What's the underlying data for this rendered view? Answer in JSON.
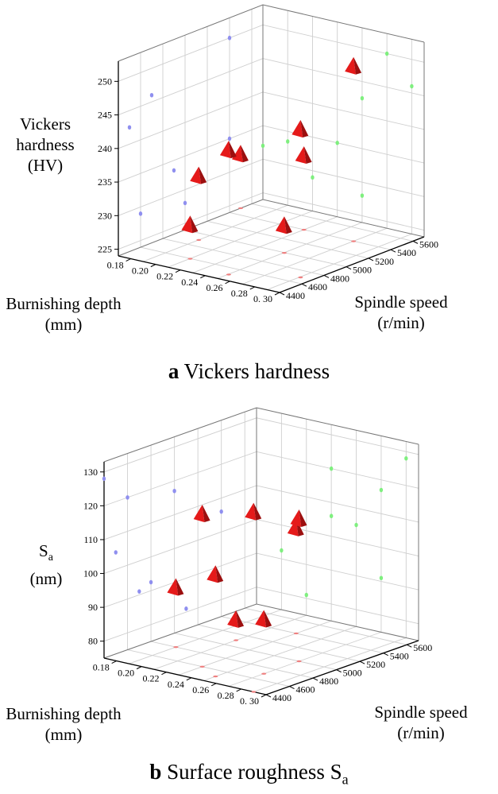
{
  "charts": [
    {
      "type": "scatter3d",
      "panel_letter": "a",
      "caption": "Vickers hardness",
      "y_title_lines": [
        "Vickers",
        "hardness",
        "(HV)"
      ],
      "x_title_lines": [
        "Burnishing depth",
        "(mm)"
      ],
      "z_title_lines": [
        "Spindle speed",
        "(r/min)"
      ],
      "y_ticks": [
        "225",
        "230",
        "235",
        "240",
        "245",
        "250"
      ],
      "x_ticks": [
        "0.18",
        "0.20",
        "0.22",
        "0.24",
        "0.26",
        "0.28",
        "0. 30"
      ],
      "z_ticks": [
        "4400",
        "4600",
        "4800",
        "5000",
        "5200",
        "5400",
        "5600"
      ],
      "ylim": [
        224,
        253
      ],
      "xlim": [
        0.17,
        0.3
      ],
      "zlim": [
        4400,
        5700
      ],
      "points": [
        {
          "depth": 0.2,
          "speed": 5000,
          "value": 235.0
        },
        {
          "depth": 0.25,
          "speed": 4600,
          "value": 233.5
        },
        {
          "depth": 0.27,
          "speed": 5600,
          "value": 246.0
        },
        {
          "depth": 0.2,
          "speed": 5400,
          "value": 250.0
        },
        {
          "depth": 0.28,
          "speed": 4800,
          "value": 229.0
        },
        {
          "depth": 0.19,
          "speed": 4400,
          "value": 232.0
        },
        {
          "depth": 0.29,
          "speed": 5200,
          "value": 242.5
        },
        {
          "depth": 0.24,
          "speed": 5200,
          "value": 228.0
        }
      ],
      "colors": {
        "point": "#e02020",
        "side_yz": "#8f8fef",
        "side_xy": "#7fef7f",
        "bottom": "#ef7f7f"
      }
    },
    {
      "type": "scatter3d",
      "panel_letter": "b",
      "caption": "Surface roughness S",
      "caption_sub": "a",
      "y_title_main": "S",
      "y_title_sub": "a",
      "y_title_unit": "(nm)",
      "x_title_lines": [
        "Burnishing depth",
        "(mm)"
      ],
      "z_title_lines": [
        "Spindle speed",
        "(r/min)"
      ],
      "y_ticks": [
        "80",
        "90",
        "100",
        "110",
        "120",
        "130"
      ],
      "x_ticks": [
        "0.18",
        "0.20",
        "0.22",
        "0.24",
        "0.26",
        "0.28",
        "0. 30"
      ],
      "z_ticks": [
        "4400",
        "4600",
        "4800",
        "5000",
        "5200",
        "5400",
        "5600"
      ],
      "ylim": [
        75,
        133
      ],
      "xlim": [
        0.17,
        0.3
      ],
      "zlim": [
        4400,
        5700
      ],
      "points": [
        {
          "depth": 0.2,
          "speed": 5000,
          "value": 106.0
        },
        {
          "depth": 0.24,
          "speed": 5400,
          "value": 117.0
        },
        {
          "depth": 0.26,
          "speed": 4600,
          "value": 92.5
        },
        {
          "depth": 0.28,
          "speed": 5000,
          "value": 120.0
        },
        {
          "depth": 0.23,
          "speed": 4800,
          "value": 81.0
        },
        {
          "depth": 0.29,
          "speed": 5200,
          "value": 105.0
        },
        {
          "depth": 0.3,
          "speed": 5600,
          "value": 128.0
        },
        {
          "depth": 0.27,
          "speed": 5400,
          "value": 91.0
        }
      ],
      "colors": {
        "point": "#e02020",
        "side_yz": "#8f8fef",
        "side_xy": "#7fef7f",
        "bottom": "#ef7f7f"
      }
    }
  ]
}
